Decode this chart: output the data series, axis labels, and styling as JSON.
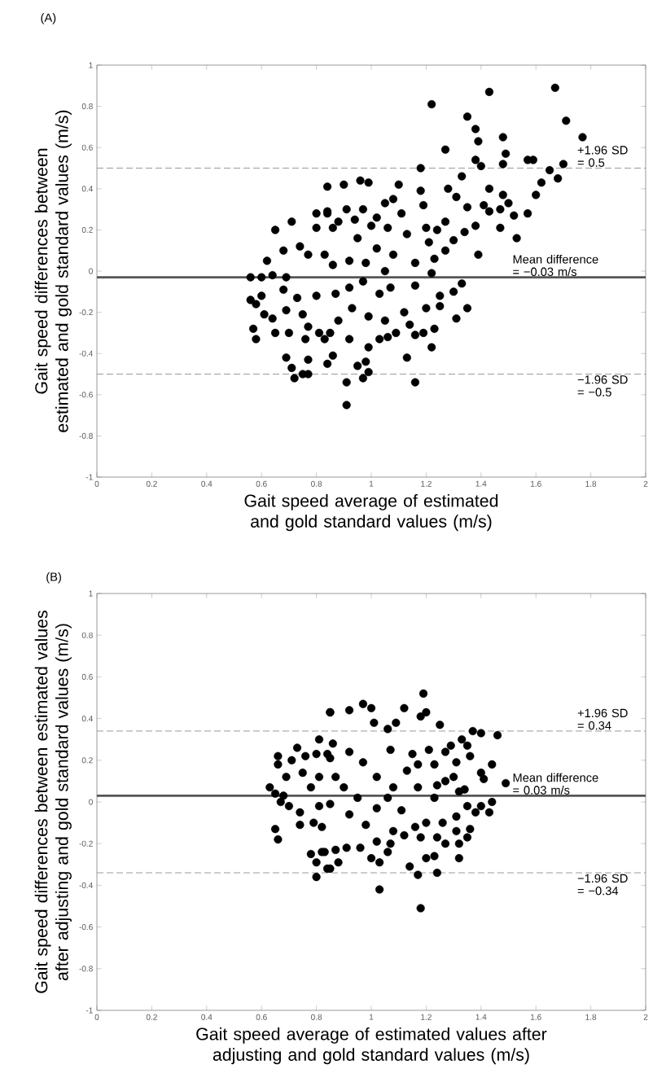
{
  "chart_data": [
    {
      "type": "scatter",
      "xlabel": "Gait speed average of estimated and gold standard values (m/s)",
      "ylabel": "Gait speed differences between estimated and gold standard values (m/s)",
      "annotations": [
        "(A)"
      ],
      "color": "#000000",
      "marker": "circle",
      "xlim": [
        0,
        2
      ],
      "ylim": [
        -1,
        1
      ],
      "xticks": [
        0,
        0.2,
        0.4,
        0.6,
        0.8,
        1,
        1.2,
        1.4,
        1.6,
        1.8,
        2
      ],
      "yticks": [
        -1,
        -0.8,
        -0.6,
        -0.4,
        -0.2,
        0,
        0.2,
        0.4,
        0.6,
        0.8,
        1
      ],
      "ref_lines": [
        {
          "axis": "y",
          "value": 0.5,
          "label": "+1.96 SD = 0.5",
          "color": "#808080",
          "line_style": "dashed"
        },
        {
          "axis": "y",
          "value": -0.03,
          "label": "Mean difference = −0.03 m/s",
          "color": "#555555",
          "line_style": "solid"
        },
        {
          "axis": "y",
          "value": -0.5,
          "label": "−1.96 SD = −0.5",
          "color": "#808080",
          "line_style": "dashed"
        }
      ],
      "x": [
        0.56,
        0.6,
        0.56,
        0.58,
        0.57,
        0.58,
        0.6,
        0.62,
        0.65,
        0.65,
        0.61,
        0.64,
        0.64,
        0.68,
        0.71,
        0.69,
        0.68,
        0.69,
        0.69,
        0.71,
        0.72,
        0.7,
        0.74,
        0.77,
        0.73,
        0.75,
        0.77,
        0.75,
        0.77,
        0.77,
        0.76,
        0.8,
        0.8,
        0.8,
        0.81,
        0.84,
        0.84,
        0.83,
        0.83,
        0.84,
        1.67,
        1.43,
        1.22,
        1.35,
        1.38,
        1.71,
        1.77,
        1.48,
        1.39,
        1.27,
        1.49,
        1.38,
        1.4,
        1.48,
        1.57,
        1.59,
        1.7,
        1.68,
        1.65,
        1.62,
        1.6,
        1.18,
        1.33,
        1.43,
        1.48,
        1.5,
        1.43,
        1.41,
        1.47,
        1.52,
        1.57,
        1.47,
        1.53,
        1.38,
        1.39,
        1.28,
        1.31,
        1.35,
        1.34,
        1.3,
        1.27,
        1.24,
        1.18,
        1.19,
        1.2,
        1.21,
        1.23,
        1.27,
        1.22,
        1.33,
        1.3,
        1.35,
        1.31,
        1.25,
        1.25,
        1.2,
        1.22,
        1.23,
        1.19,
        1.16,
        1.16,
        1.13,
        1.14,
        1.12,
        1.16,
        1.13,
        1.1,
        1.08,
        1.05,
        1.11,
        1.06,
        1.02,
        0.99,
        0.96,
        0.9,
        0.91,
        0.97,
        0.94,
        0.88,
        0.84,
        0.86,
        1.0,
        0.95,
        1.02,
        1.08,
        1.16,
        0.91,
        0.91,
        0.97,
        0.99,
        0.95,
        0.98,
        0.86,
        0.92,
        0.99,
        1.03,
        1.06,
        1.09,
        1.05,
        0.99,
        0.93,
        0.88,
        0.85,
        0.87,
        0.92,
        0.97,
        1.03,
        1.07,
        0.86,
        0.92,
        0.98,
        1.05
      ],
      "values": [
        -0.03,
        -0.03,
        -0.14,
        -0.16,
        -0.28,
        -0.33,
        -0.12,
        0.05,
        0.2,
        -0.3,
        -0.21,
        -0.02,
        -0.23,
        0.1,
        0.24,
        -0.03,
        -0.09,
        -0.19,
        -0.42,
        -0.47,
        -0.52,
        -0.3,
        0.12,
        0.08,
        -0.13,
        -0.21,
        -0.27,
        -0.5,
        -0.5,
        -0.43,
        -0.33,
        0.21,
        0.28,
        -0.12,
        -0.3,
        0.41,
        -0.45,
        -0.33,
        0.08,
        0.29,
        0.89,
        0.87,
        0.81,
        0.75,
        0.69,
        0.73,
        0.65,
        0.65,
        0.63,
        0.59,
        0.57,
        0.54,
        0.51,
        0.52,
        0.54,
        0.54,
        0.52,
        0.45,
        0.49,
        0.43,
        0.37,
        0.5,
        0.46,
        0.4,
        0.37,
        0.33,
        0.29,
        0.32,
        0.3,
        0.27,
        0.28,
        0.21,
        0.16,
        0.22,
        0.08,
        0.4,
        0.36,
        0.31,
        0.19,
        0.15,
        0.24,
        0.2,
        0.39,
        0.32,
        0.21,
        0.14,
        0.06,
        0.1,
        -0.01,
        -0.06,
        -0.1,
        -0.18,
        -0.23,
        -0.17,
        -0.12,
        -0.18,
        -0.37,
        -0.28,
        -0.3,
        -0.31,
        -0.54,
        -0.42,
        -0.26,
        -0.2,
        -0.07,
        0.18,
        0.42,
        0.35,
        0.33,
        0.28,
        0.21,
        0.26,
        0.43,
        0.44,
        0.42,
        0.3,
        0.3,
        0.25,
        0.24,
        0.28,
        0.21,
        0.22,
        0.16,
        0.11,
        0.08,
        0.04,
        -0.54,
        -0.65,
        -0.52,
        -0.49,
        -0.46,
        -0.44,
        -0.41,
        -0.33,
        -0.37,
        -0.33,
        -0.32,
        -0.3,
        -0.24,
        -0.22,
        -0.18,
        -0.24,
        -0.3,
        -0.11,
        -0.08,
        -0.05,
        -0.11,
        -0.08,
        0.03,
        0.05,
        0.04,
        0.0
      ]
    },
    {
      "type": "scatter",
      "xlabel": "Gait speed average of estimated values after adjusting and gold standard values (m/s)",
      "ylabel": "Gait speed differences between estimated values after adjusting and gold standard values (m/s)",
      "annotations": [
        "(B)"
      ],
      "color": "#000000",
      "marker": "circle",
      "xlim": [
        0,
        2
      ],
      "ylim": [
        -1,
        1
      ],
      "xticks": [
        0,
        0.2,
        0.4,
        0.6,
        0.8,
        1,
        1.2,
        1.4,
        1.6,
        1.8,
        2
      ],
      "yticks": [
        -1,
        -0.8,
        -0.6,
        -0.4,
        -0.2,
        0,
        0.2,
        0.4,
        0.6,
        0.8,
        1
      ],
      "ref_lines": [
        {
          "axis": "y",
          "value": 0.34,
          "label": "+1.96 SD = 0.34",
          "color": "#808080",
          "line_style": "dashed"
        },
        {
          "axis": "y",
          "value": 0.03,
          "label": "Mean difference = 0.03 m/s",
          "color": "#555555",
          "line_style": "solid"
        },
        {
          "axis": "y",
          "value": -0.34,
          "label": "−1.96 SD = −0.34",
          "color": "#808080",
          "line_style": "dashed"
        }
      ],
      "x": [
        0.63,
        0.65,
        0.66,
        0.66,
        0.65,
        0.66,
        0.67,
        0.68,
        0.69,
        0.71,
        0.73,
        0.7,
        0.74,
        0.74,
        0.76,
        0.75,
        0.78,
        0.82,
        0.8,
        0.8,
        0.84,
        0.85,
        0.81,
        0.8,
        0.84,
        0.78,
        0.81,
        0.79,
        0.82,
        0.81,
        1.19,
        0.85,
        0.92,
        0.97,
        1.0,
        1.12,
        1.18,
        1.2,
        1.09,
        1.01,
        1.06,
        1.25,
        1.37,
        1.4,
        1.46,
        1.33,
        1.35,
        1.29,
        1.36,
        1.31,
        1.27,
        1.21,
        1.44,
        1.4,
        1.41,
        1.49,
        1.27,
        1.3,
        1.34,
        1.32,
        1.23,
        1.44,
        1.35,
        1.4,
        1.43,
        1.38,
        1.31,
        1.26,
        1.2,
        1.16,
        1.31,
        1.36,
        1.35,
        1.32,
        1.27,
        1.24,
        1.18,
        1.12,
        1.07,
        1.08,
        1.02,
        0.96,
        0.91,
        0.87,
        0.88,
        0.85,
        0.83,
        1.0,
        1.03,
        1.06,
        1.14,
        1.17,
        1.2,
        1.23,
        1.24,
        1.32,
        1.03,
        1.18,
        1.11,
        1.17,
        1.13,
        1.17,
        1.23,
        1.24,
        1.08,
        1.02,
        0.97,
        0.92,
        0.86,
        0.85,
        0.9,
        0.95,
        0.85,
        0.92,
        0.98,
        1.02,
        1.06,
        0.87,
        1.07,
        1.15
      ],
      "values": [
        0.07,
        0.04,
        0.22,
        0.18,
        -0.13,
        -0.18,
        0.0,
        0.03,
        0.12,
        0.2,
        0.26,
        -0.02,
        -0.11,
        -0.05,
        0.22,
        0.14,
        -0.25,
        -0.24,
        -0.29,
        -0.36,
        -0.32,
        0.43,
        0.3,
        0.23,
        0.23,
        0.07,
        0.12,
        -0.1,
        -0.12,
        -0.02,
        0.52,
        0.43,
        0.44,
        0.47,
        0.45,
        0.45,
        0.41,
        0.43,
        0.38,
        0.38,
        0.35,
        0.37,
        0.34,
        0.33,
        0.32,
        0.3,
        0.27,
        0.27,
        0.22,
        0.19,
        0.24,
        0.25,
        0.18,
        0.14,
        0.11,
        0.09,
        0.1,
        0.12,
        0.06,
        0.05,
        0.02,
        0.0,
        -0.02,
        -0.02,
        -0.05,
        -0.05,
        -0.07,
        -0.1,
        -0.1,
        -0.12,
        -0.14,
        -0.13,
        -0.17,
        -0.2,
        -0.2,
        -0.17,
        -0.17,
        -0.16,
        -0.2,
        -0.14,
        -0.19,
        -0.22,
        -0.22,
        -0.23,
        -0.29,
        -0.32,
        -0.24,
        -0.27,
        -0.29,
        -0.24,
        -0.31,
        -0.35,
        -0.27,
        -0.26,
        -0.34,
        -0.27,
        -0.42,
        -0.51,
        -0.04,
        0.07,
        0.15,
        0.18,
        0.18,
        0.08,
        0.07,
        0.12,
        0.19,
        0.24,
        0.28,
        0.21,
        0.07,
        0.02,
        -0.01,
        -0.06,
        -0.11,
        -0.03,
        0.02,
        0.12,
        0.25,
        0.23
      ]
    }
  ]
}
